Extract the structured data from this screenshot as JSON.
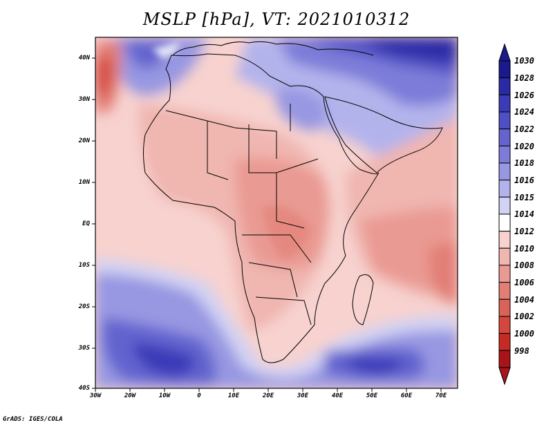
{
  "title": "MSLP [hPa], VT: 2021010312",
  "credit": "GrADS: IGES/COLA",
  "y_axis_labels": [
    "40N",
    "30N",
    "20N",
    "10N",
    "EQ",
    "10S",
    "20S",
    "30S",
    "40S"
  ],
  "x_axis_labels": [
    "30W",
    "20W",
    "10W",
    "0",
    "10E",
    "20E",
    "30E",
    "40E",
    "50E",
    "60E",
    "70E"
  ],
  "colorbar": {
    "labels": [
      "1030",
      "1028",
      "1026",
      "1024",
      "1022",
      "1020",
      "1018",
      "1016",
      "1015",
      "1014",
      "1012",
      "1010",
      "1008",
      "1006",
      "1004",
      "1002",
      "1000",
      "998"
    ],
    "colors": [
      "#1a1a8c",
      "#2a2aa6",
      "#3b3bb8",
      "#4f4fc4",
      "#6464cf",
      "#7d7dd9",
      "#9797e2",
      "#b3b3ec",
      "#d2d2f4",
      "#ffffff",
      "#f7d2cf",
      "#f0b6b0",
      "#e99a92",
      "#e27e75",
      "#db6259",
      "#d3473e",
      "#c52b24",
      "#a8141a"
    ]
  }
}
